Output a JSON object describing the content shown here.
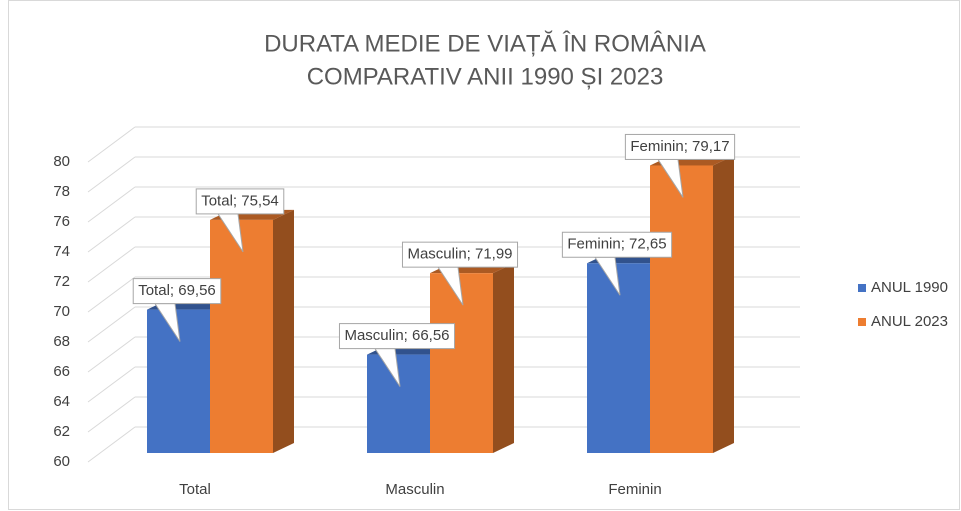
{
  "chart_data": {
    "type": "bar3d",
    "title": [
      "DURATA MEDIE DE VIAȚĂ ÎN ROMÂNIA",
      "COMPARATIV ANII 1990 ȘI 2023"
    ],
    "categories": [
      "Total",
      "Masculin",
      "Feminin"
    ],
    "series": [
      {
        "name": "ANUL 1990",
        "color": "#4472c4",
        "values": [
          69.56,
          66.56,
          72.65
        ],
        "value_labels": [
          "Total; 69,56",
          "Masculin; 66,56",
          "Feminin; 72,65"
        ]
      },
      {
        "name": "ANUL 2023",
        "color": "#ed7d31",
        "values": [
          75.54,
          71.99,
          79.17
        ],
        "value_labels": [
          "Total; 75,54",
          "Masculin; 71,99",
          "Feminin; 79,17"
        ]
      }
    ],
    "ylim": [
      60,
      80
    ],
    "yticks": [
      60,
      62,
      64,
      66,
      68,
      70,
      72,
      74,
      76,
      78,
      80
    ],
    "grid": true,
    "legend": "right"
  }
}
